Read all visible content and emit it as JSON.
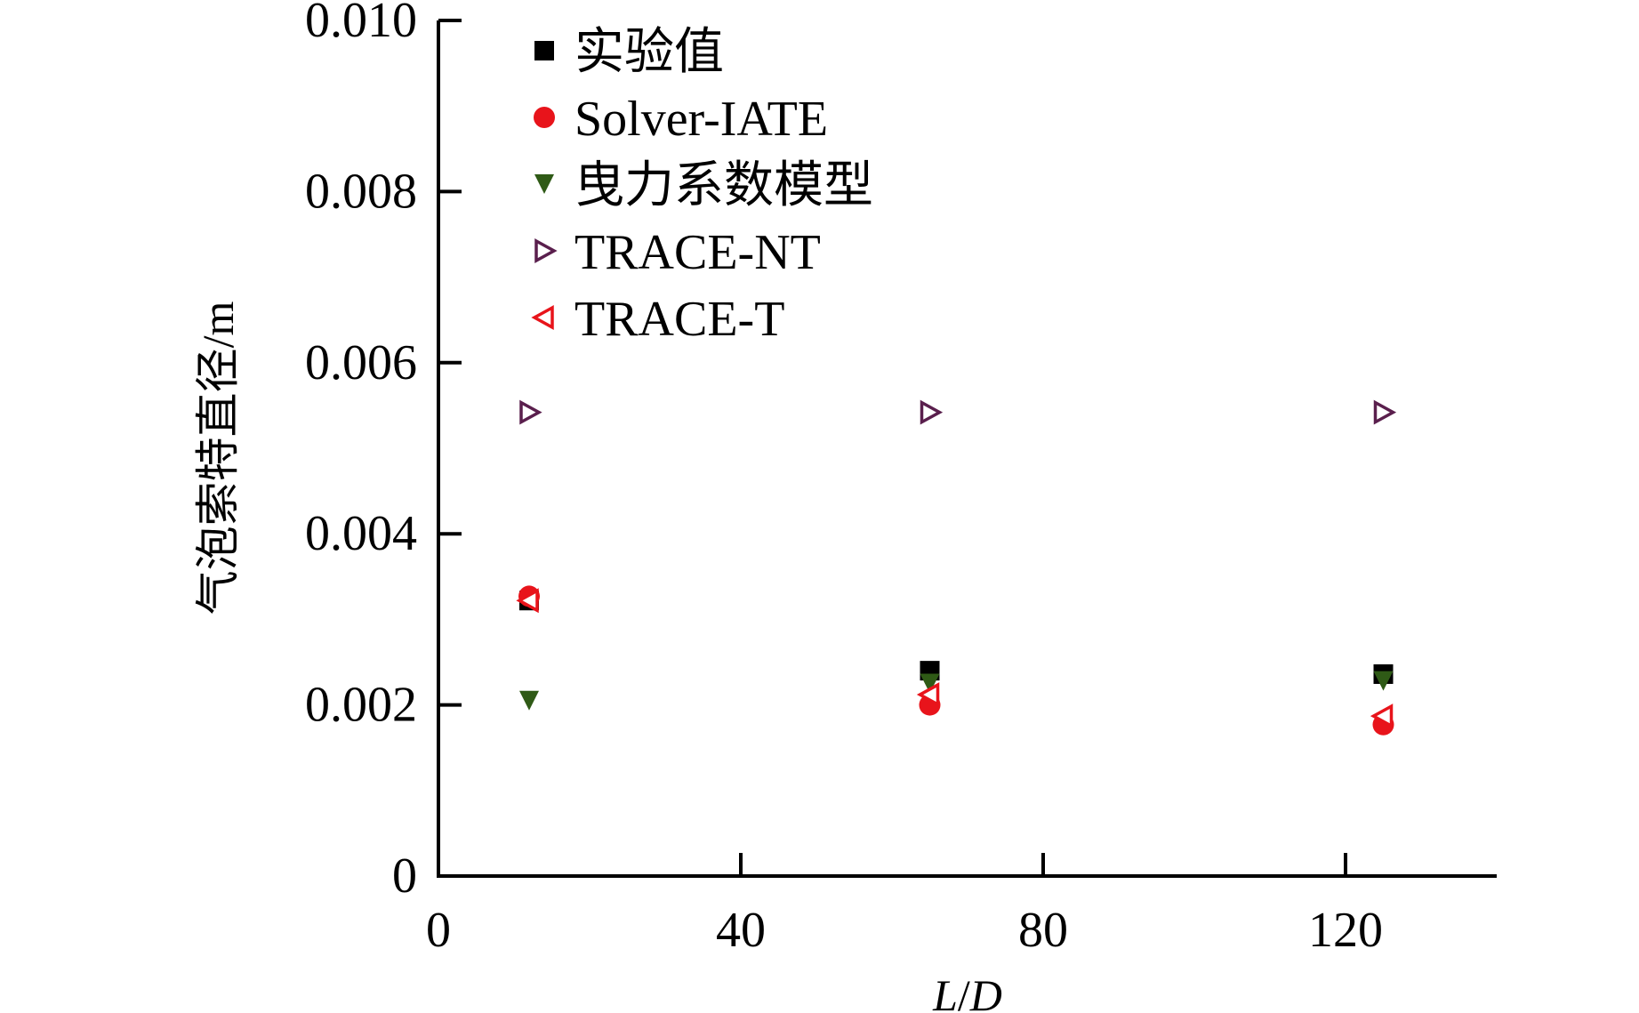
{
  "chart_data": {
    "type": "scatter",
    "xlabel_parts": [
      "L",
      "/",
      "D"
    ],
    "ylabel": "气泡索特直径/m",
    "xlim": [
      0,
      140
    ],
    "ylim": [
      0,
      0.01
    ],
    "x_ticks": [
      0,
      40,
      80,
      120
    ],
    "x_tick_labels": [
      "0",
      "40",
      "80",
      "120"
    ],
    "y_ticks": [
      0,
      0.002,
      0.004,
      0.006,
      0.008,
      0.01
    ],
    "y_tick_labels": [
      "0",
      "0.002",
      "0.004",
      "0.006",
      "0.008",
      "0.010"
    ],
    "legend_position": "top-left",
    "series": [
      {
        "name": "实验值",
        "marker": "square",
        "color": "#000000",
        "x": [
          12,
          65,
          125
        ],
        "y": [
          0.00322,
          0.0024,
          0.00236
        ]
      },
      {
        "name": "Solver-IATE",
        "marker": "circle",
        "color": "#e8141b",
        "x": [
          12,
          65,
          125
        ],
        "y": [
          0.00327,
          0.002,
          0.00177
        ]
      },
      {
        "name": "曳力系数模型",
        "marker": "triangle-down",
        "color": "#2f5a16",
        "x": [
          12,
          65,
          125
        ],
        "y": [
          0.00205,
          0.00225,
          0.00228
        ]
      },
      {
        "name": "TRACE-NT",
        "marker": "triangle-right-open",
        "color": "#5a1f4d",
        "x": [
          12,
          65,
          125
        ],
        "y": [
          0.00542,
          0.00542,
          0.00542
        ]
      },
      {
        "name": "TRACE-T",
        "marker": "triangle-left-open",
        "color": "#e8141b",
        "x": [
          12,
          65,
          125
        ],
        "y": [
          0.00322,
          0.00212,
          0.00187
        ]
      }
    ]
  }
}
